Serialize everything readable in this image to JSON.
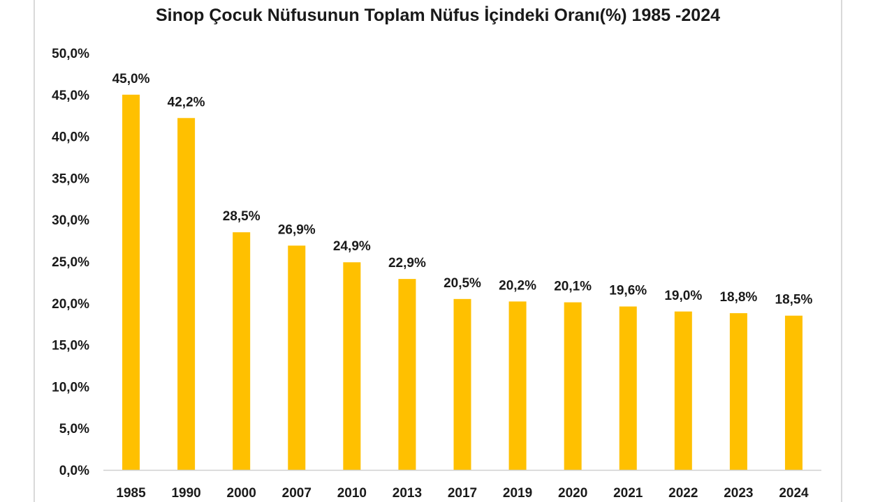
{
  "chart_data": {
    "type": "bar",
    "title": "Sinop Çocuk Nüfusunun Toplam Nüfus İçindeki Oranı(%) 1985 -2024",
    "categories": [
      "1985",
      "1990",
      "2000",
      "2007",
      "2010",
      "2013",
      "2017",
      "2019",
      "2020",
      "2021",
      "2022",
      "2023",
      "2024"
    ],
    "values": [
      45.0,
      42.2,
      28.5,
      26.9,
      24.9,
      22.9,
      20.5,
      20.2,
      20.1,
      19.6,
      19.0,
      18.8,
      18.5
    ],
    "data_labels": [
      "45,0%",
      "42,2%",
      "28,5%",
      "26,9%",
      "24,9%",
      "22,9%",
      "20,5%",
      "20,2%",
      "20,1%",
      "19,6%",
      "19,0%",
      "18,8%",
      "18,5%"
    ],
    "yticks": [
      0,
      5,
      10,
      15,
      20,
      25,
      30,
      35,
      40,
      45,
      50
    ],
    "ytick_labels": [
      "0,0%",
      "5,0%",
      "10,0%",
      "15,0%",
      "20,0%",
      "25,0%",
      "30,0%",
      "35,0%",
      "40,0%",
      "45,0%",
      "50,0%"
    ],
    "ylim": [
      0,
      50
    ],
    "xlabel": "",
    "ylabel": "",
    "grid": false,
    "legend": "none",
    "bar_color": "#FFC000"
  }
}
